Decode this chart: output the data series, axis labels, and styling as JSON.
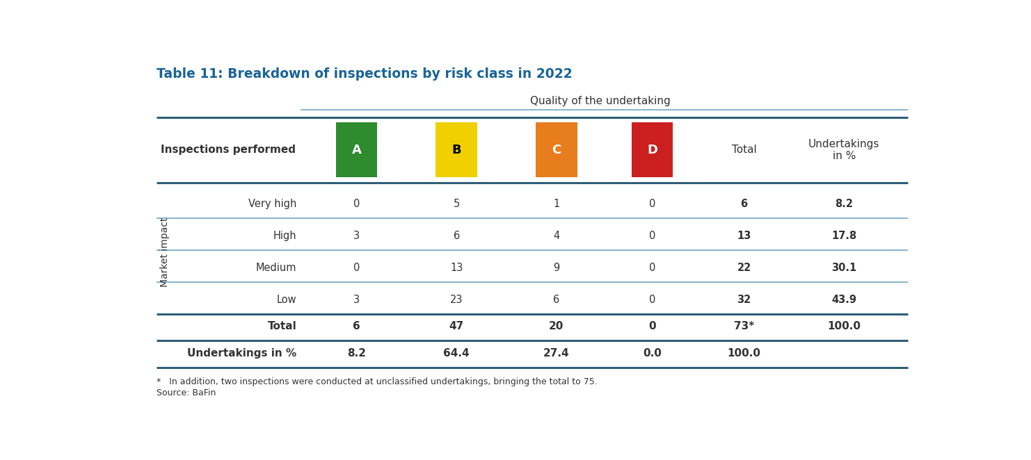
{
  "title": "Table 11: Breakdown of inspections by risk class in 2022",
  "subtitle": "Quality of the undertaking",
  "col_group_label": "Inspections performed",
  "row_group_label": "Market impact",
  "columns": [
    "A",
    "B",
    "C",
    "D",
    "Total",
    "Undertakings\nin %"
  ],
  "col_colors": [
    "#2e8b2e",
    "#f0d000",
    "#e87d1e",
    "#cc1f1f",
    null,
    null
  ],
  "col_letter_colors": [
    "#ffffff",
    "#000000",
    "#ffffff",
    "#ffffff",
    null,
    null
  ],
  "rows": [
    {
      "label": "Very high",
      "values": [
        "0",
        "5",
        "1",
        "0",
        "6",
        "8.2"
      ]
    },
    {
      "label": "High",
      "values": [
        "3",
        "6",
        "4",
        "0",
        "13",
        "17.8"
      ]
    },
    {
      "label": "Medium",
      "values": [
        "0",
        "13",
        "9",
        "0",
        "22",
        "30.1"
      ]
    },
    {
      "label": "Low",
      "values": [
        "3",
        "23",
        "6",
        "0",
        "32",
        "43.9"
      ]
    }
  ],
  "total_row": {
    "label": "Total",
    "values": [
      "6",
      "47",
      "20",
      "0",
      "73*",
      "100.0"
    ]
  },
  "pct_row": {
    "label": "Undertakings in %",
    "values": [
      "8.2",
      "64.4",
      "27.4",
      "0.0",
      "100.0",
      ""
    ]
  },
  "footnote": "*   In addition, two inspections were conducted at unclassified undertakings, bringing the total to 75.",
  "source": "Source: BaFin",
  "title_color": "#1a6496",
  "header_text_color": "#333333",
  "body_text_color": "#333333",
  "line_color_thick": "#2e5f7a",
  "line_color_thin": "#6fa8c0",
  "bg_color": "#ffffff"
}
